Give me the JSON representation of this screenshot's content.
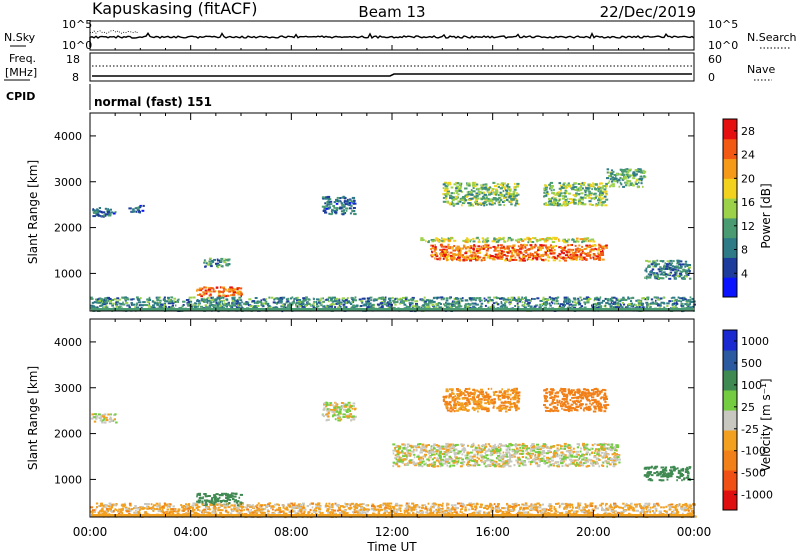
{
  "header": {
    "station": "Kapuskasing (fitACF)",
    "beam": "Beam 13",
    "date": "22/Dec/2019"
  },
  "sky_panel": {
    "left_label": "N.Sky",
    "left_ticks": [
      "10^5",
      "10^0"
    ],
    "right_label": "N.Search",
    "right_ticks": [
      "10^5",
      "10^0"
    ]
  },
  "freq_panel": {
    "left_label_top": "Freq.",
    "left_label_bottom": "[MHz]",
    "left_ticks": [
      "18",
      "8"
    ],
    "right_label": "Nave",
    "right_ticks": [
      "60",
      "0"
    ],
    "cpid_label": "CPID",
    "cpid_value": "normal (fast) 151"
  },
  "colors": {
    "power": [
      "#0a14ff",
      "#1e3c9c",
      "#2e7a86",
      "#4a9a72",
      "#9cd24a",
      "#f2d21c",
      "#f59a18",
      "#f25a14",
      "#e60f0f"
    ],
    "velocity": [
      "#1a2ad0",
      "#2c5aa0",
      "#3f8a52",
      "#74cc40",
      "#c8c8c0",
      "#f2a020",
      "#f28018",
      "#f05014",
      "#e00f0f"
    ],
    "ground": "#b0b0b0"
  },
  "chart_data": [
    {
      "type": "heatmap",
      "name": "power",
      "ylabel": "Slant Range [km]",
      "xlabel": "Time UT",
      "x_ticks": [
        "00:00",
        "04:00",
        "08:00",
        "12:00",
        "16:00",
        "20:00",
        "00:00"
      ],
      "y_ticks": [
        "1000",
        "2000",
        "3000",
        "4000"
      ],
      "xlim_hours": [
        0,
        24
      ],
      "ylim_km": [
        180,
        4500
      ],
      "colorbar": {
        "label": "Power [dB]",
        "ticks": [
          "4",
          "8",
          "12",
          "16",
          "20",
          "24",
          "28"
        ],
        "range": [
          0,
          30
        ]
      },
      "regions": [
        {
          "t": [
            0.0,
            1.0
          ],
          "r": [
            2250,
            2450
          ],
          "v": 8
        },
        {
          "t": [
            1.5,
            2.1
          ],
          "r": [
            2350,
            2500
          ],
          "v": 7
        },
        {
          "t": [
            4.2,
            6.0
          ],
          "r": [
            520,
            720
          ],
          "v": 24
        },
        {
          "t": [
            4.5,
            5.5
          ],
          "r": [
            1150,
            1350
          ],
          "v": 10
        },
        {
          "t": [
            9.2,
            10.5
          ],
          "r": [
            2300,
            2700
          ],
          "v": 8
        },
        {
          "t": [
            13.0,
            20.0
          ],
          "r": [
            1700,
            1800
          ],
          "v": 16
        },
        {
          "t": [
            13.5,
            20.5
          ],
          "r": [
            1300,
            1650
          ],
          "v": 24
        },
        {
          "t": [
            14.0,
            17.0
          ],
          "r": [
            2500,
            3000
          ],
          "v": 14
        },
        {
          "t": [
            18.0,
            20.5
          ],
          "r": [
            2500,
            3000
          ],
          "v": 14
        },
        {
          "t": [
            20.5,
            22.0
          ],
          "r": [
            2900,
            3300
          ],
          "v": 12
        },
        {
          "t": [
            22.0,
            23.8
          ],
          "r": [
            900,
            1300
          ],
          "v": 9
        },
        {
          "t": [
            0.0,
            24.0
          ],
          "r": [
            200,
            500
          ],
          "v": 10
        }
      ]
    },
    {
      "type": "heatmap",
      "name": "velocity",
      "ylabel": "Slant Range [km]",
      "xlabel": "Time UT",
      "x_ticks": [
        "00:00",
        "04:00",
        "08:00",
        "12:00",
        "16:00",
        "20:00",
        "00:00"
      ],
      "y_ticks": [
        "1000",
        "2000",
        "3000",
        "4000"
      ],
      "xlim_hours": [
        0,
        24
      ],
      "ylim_km": [
        180,
        4500
      ],
      "colorbar": {
        "label": "Velocity [m s⁻¹]",
        "ticks": [
          "1000",
          "500",
          "100",
          "25",
          "-25",
          "-100",
          "-500",
          "-1000"
        ],
        "range": [
          -1000,
          1000
        ]
      },
      "regions": [
        {
          "t": [
            0.0,
            1.0
          ],
          "r": [
            2250,
            2450
          ],
          "v": 0
        },
        {
          "t": [
            4.2,
            6.0
          ],
          "r": [
            450,
            720
          ],
          "v": 200
        },
        {
          "t": [
            9.2,
            10.5
          ],
          "r": [
            2300,
            2700
          ],
          "v": 0
        },
        {
          "t": [
            12.0,
            21.0
          ],
          "r": [
            1300,
            1800
          ],
          "v": 0
        },
        {
          "t": [
            14.0,
            17.0
          ],
          "r": [
            2500,
            3000
          ],
          "v": -100
        },
        {
          "t": [
            18.0,
            20.5
          ],
          "r": [
            2500,
            3000
          ],
          "v": -200
        },
        {
          "t": [
            22.0,
            23.8
          ],
          "r": [
            1000,
            1300
          ],
          "v": 200
        },
        {
          "t": [
            0.0,
            24.0
          ],
          "r": [
            200,
            500
          ],
          "v": -50
        }
      ]
    }
  ]
}
